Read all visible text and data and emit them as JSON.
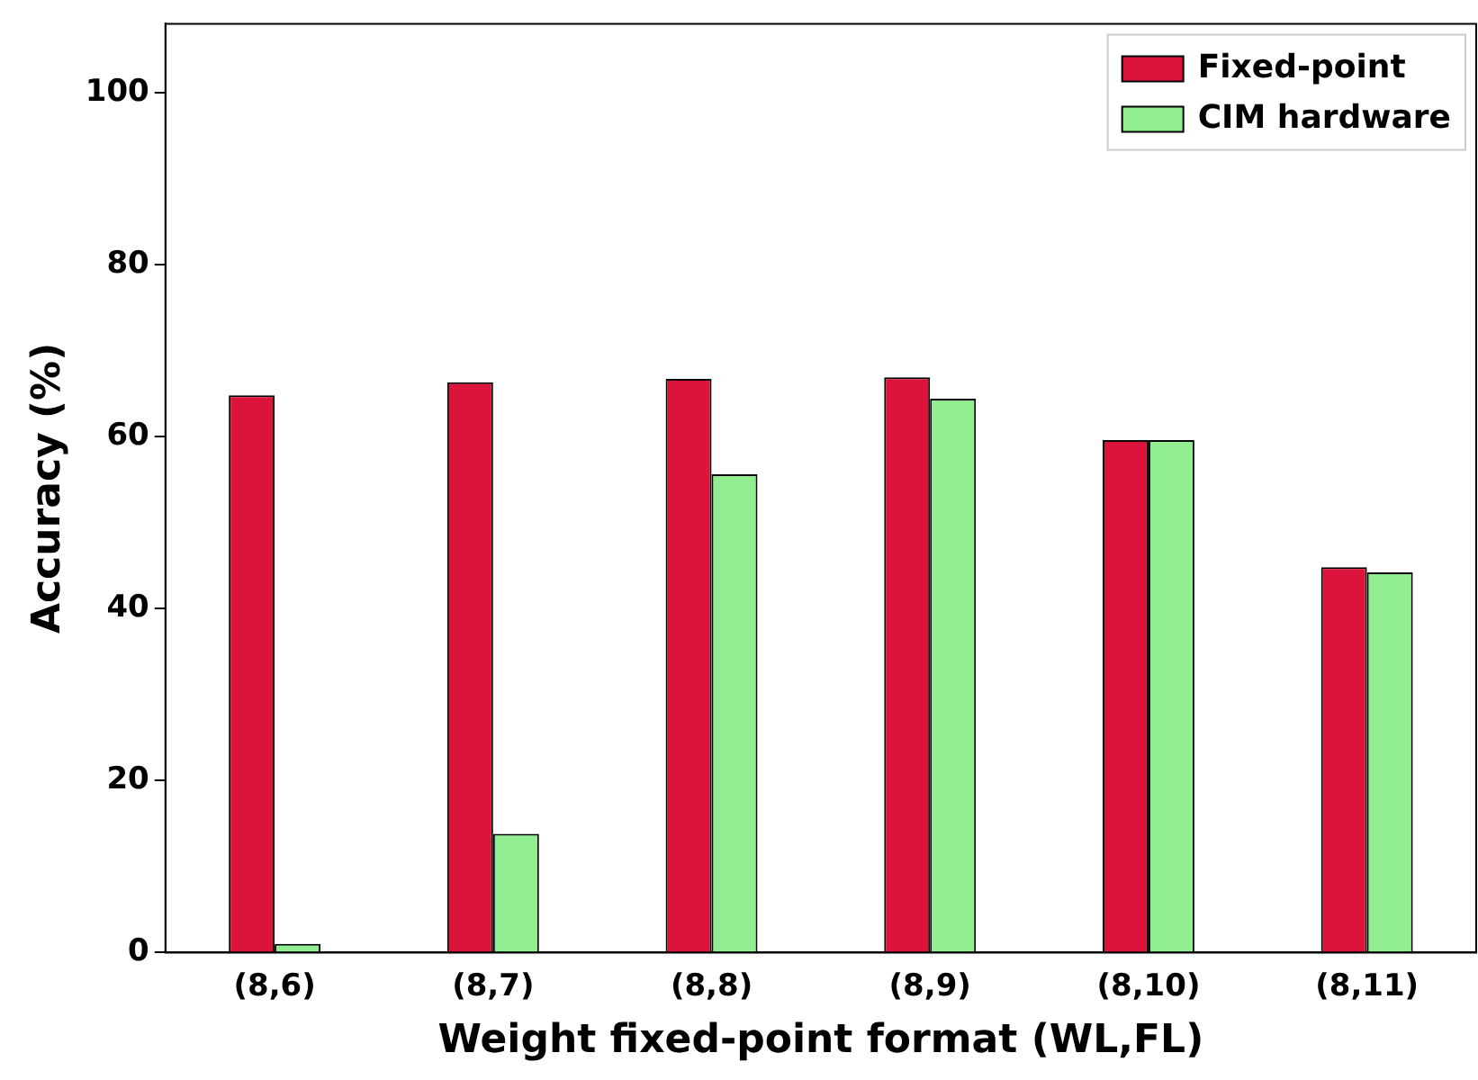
{
  "chart_data": {
    "type": "bar",
    "xlabel": "Weight fixed-point format (WL,FL)",
    "ylabel": "Accuracy (%)",
    "categories": [
      "(8,6)",
      "(8,7)",
      "(8,8)",
      "(8,9)",
      "(8,10)",
      "(8,11)"
    ],
    "series": [
      {
        "name": "Fixed-point",
        "color": "#dc143c",
        "values": [
          64.8,
          66.3,
          66.7,
          66.9,
          59.6,
          44.8
        ]
      },
      {
        "name": "CIM hardware",
        "color": "#90ee90",
        "values": [
          1.0,
          13.8,
          55.6,
          64.4,
          59.6,
          44.2
        ]
      }
    ],
    "ylim": [
      0,
      108
    ],
    "yticks": [
      0,
      20,
      40,
      60,
      80,
      100
    ],
    "grid": false,
    "legend": "top right"
  }
}
